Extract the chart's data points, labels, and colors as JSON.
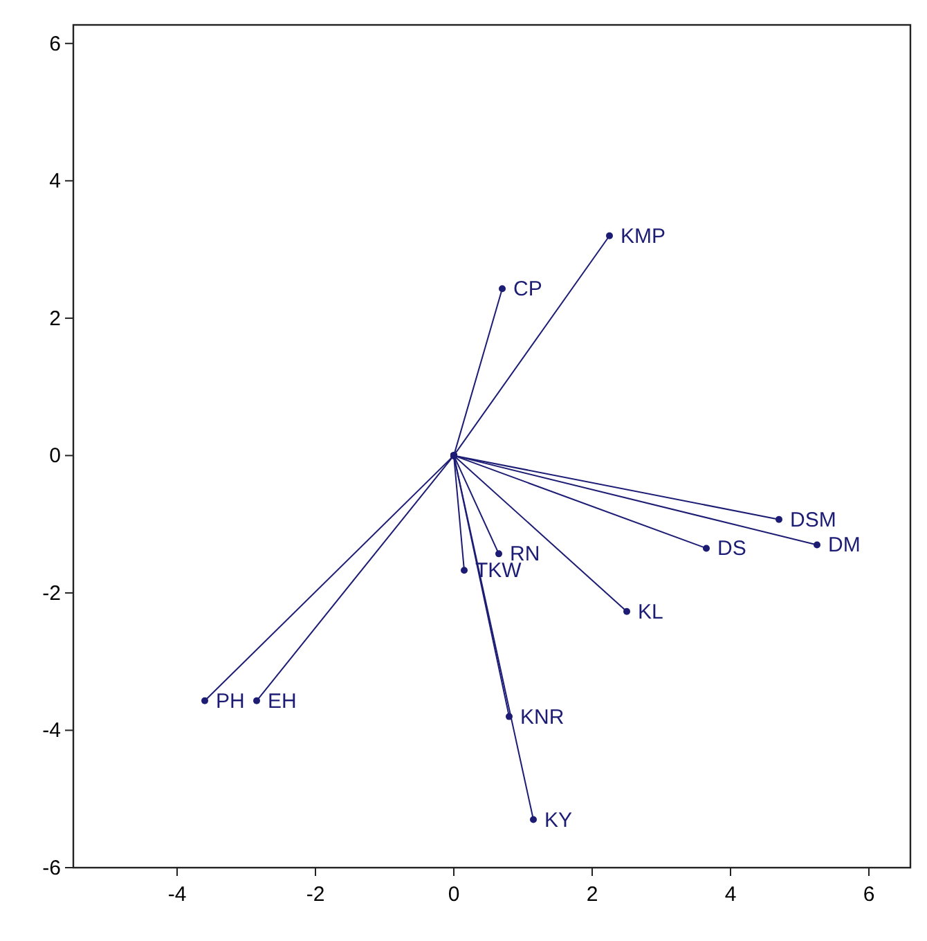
{
  "chart_data": {
    "type": "line",
    "xlim": [
      -5.5,
      6.6
    ],
    "ylim": [
      -6,
      6.27
    ],
    "xticks": [
      -4,
      -2,
      0,
      2,
      4,
      6
    ],
    "yticks": [
      -6,
      -4,
      -2,
      0,
      2,
      4,
      6
    ],
    "grid": false,
    "marker": "circle",
    "line_style": "solid",
    "series": [
      {
        "name": "KMP",
        "color": "#1c1c74",
        "x": [
          0,
          2.25
        ],
        "values": [
          0,
          3.2
        ]
      },
      {
        "name": "CP",
        "color": "#1c1c74",
        "x": [
          0,
          0.7
        ],
        "values": [
          0,
          2.43
        ]
      },
      {
        "name": "DSM",
        "color": "#1c1c74",
        "x": [
          0,
          4.7
        ],
        "values": [
          0,
          -0.93
        ]
      },
      {
        "name": "DM",
        "color": "#1c1c74",
        "x": [
          0,
          5.25
        ],
        "values": [
          0,
          -1.3
        ]
      },
      {
        "name": "DS",
        "color": "#1c1c74",
        "x": [
          0,
          3.65
        ],
        "values": [
          0,
          -1.35
        ]
      },
      {
        "name": "RN",
        "color": "#1c1c74",
        "x": [
          0,
          0.65
        ],
        "values": [
          0,
          -1.43
        ]
      },
      {
        "name": "TKW",
        "color": "#1c1c74",
        "x": [
          0,
          0.15
        ],
        "values": [
          0,
          -1.67
        ]
      },
      {
        "name": "KL",
        "color": "#1c1c74",
        "x": [
          0,
          2.5
        ],
        "values": [
          0,
          -2.27
        ]
      },
      {
        "name": "PH",
        "color": "#1c1c74",
        "x": [
          0,
          -3.6
        ],
        "values": [
          0,
          -3.57
        ]
      },
      {
        "name": "EH",
        "color": "#1c1c74",
        "x": [
          0,
          -2.85
        ],
        "values": [
          0,
          -3.57
        ]
      },
      {
        "name": "KNR",
        "color": "#1c1c74",
        "x": [
          0,
          0.8
        ],
        "values": [
          0,
          -3.8
        ]
      },
      {
        "name": "KY",
        "color": "#1c1c74",
        "x": [
          0,
          1.15
        ],
        "values": [
          0,
          -5.3
        ]
      }
    ]
  }
}
